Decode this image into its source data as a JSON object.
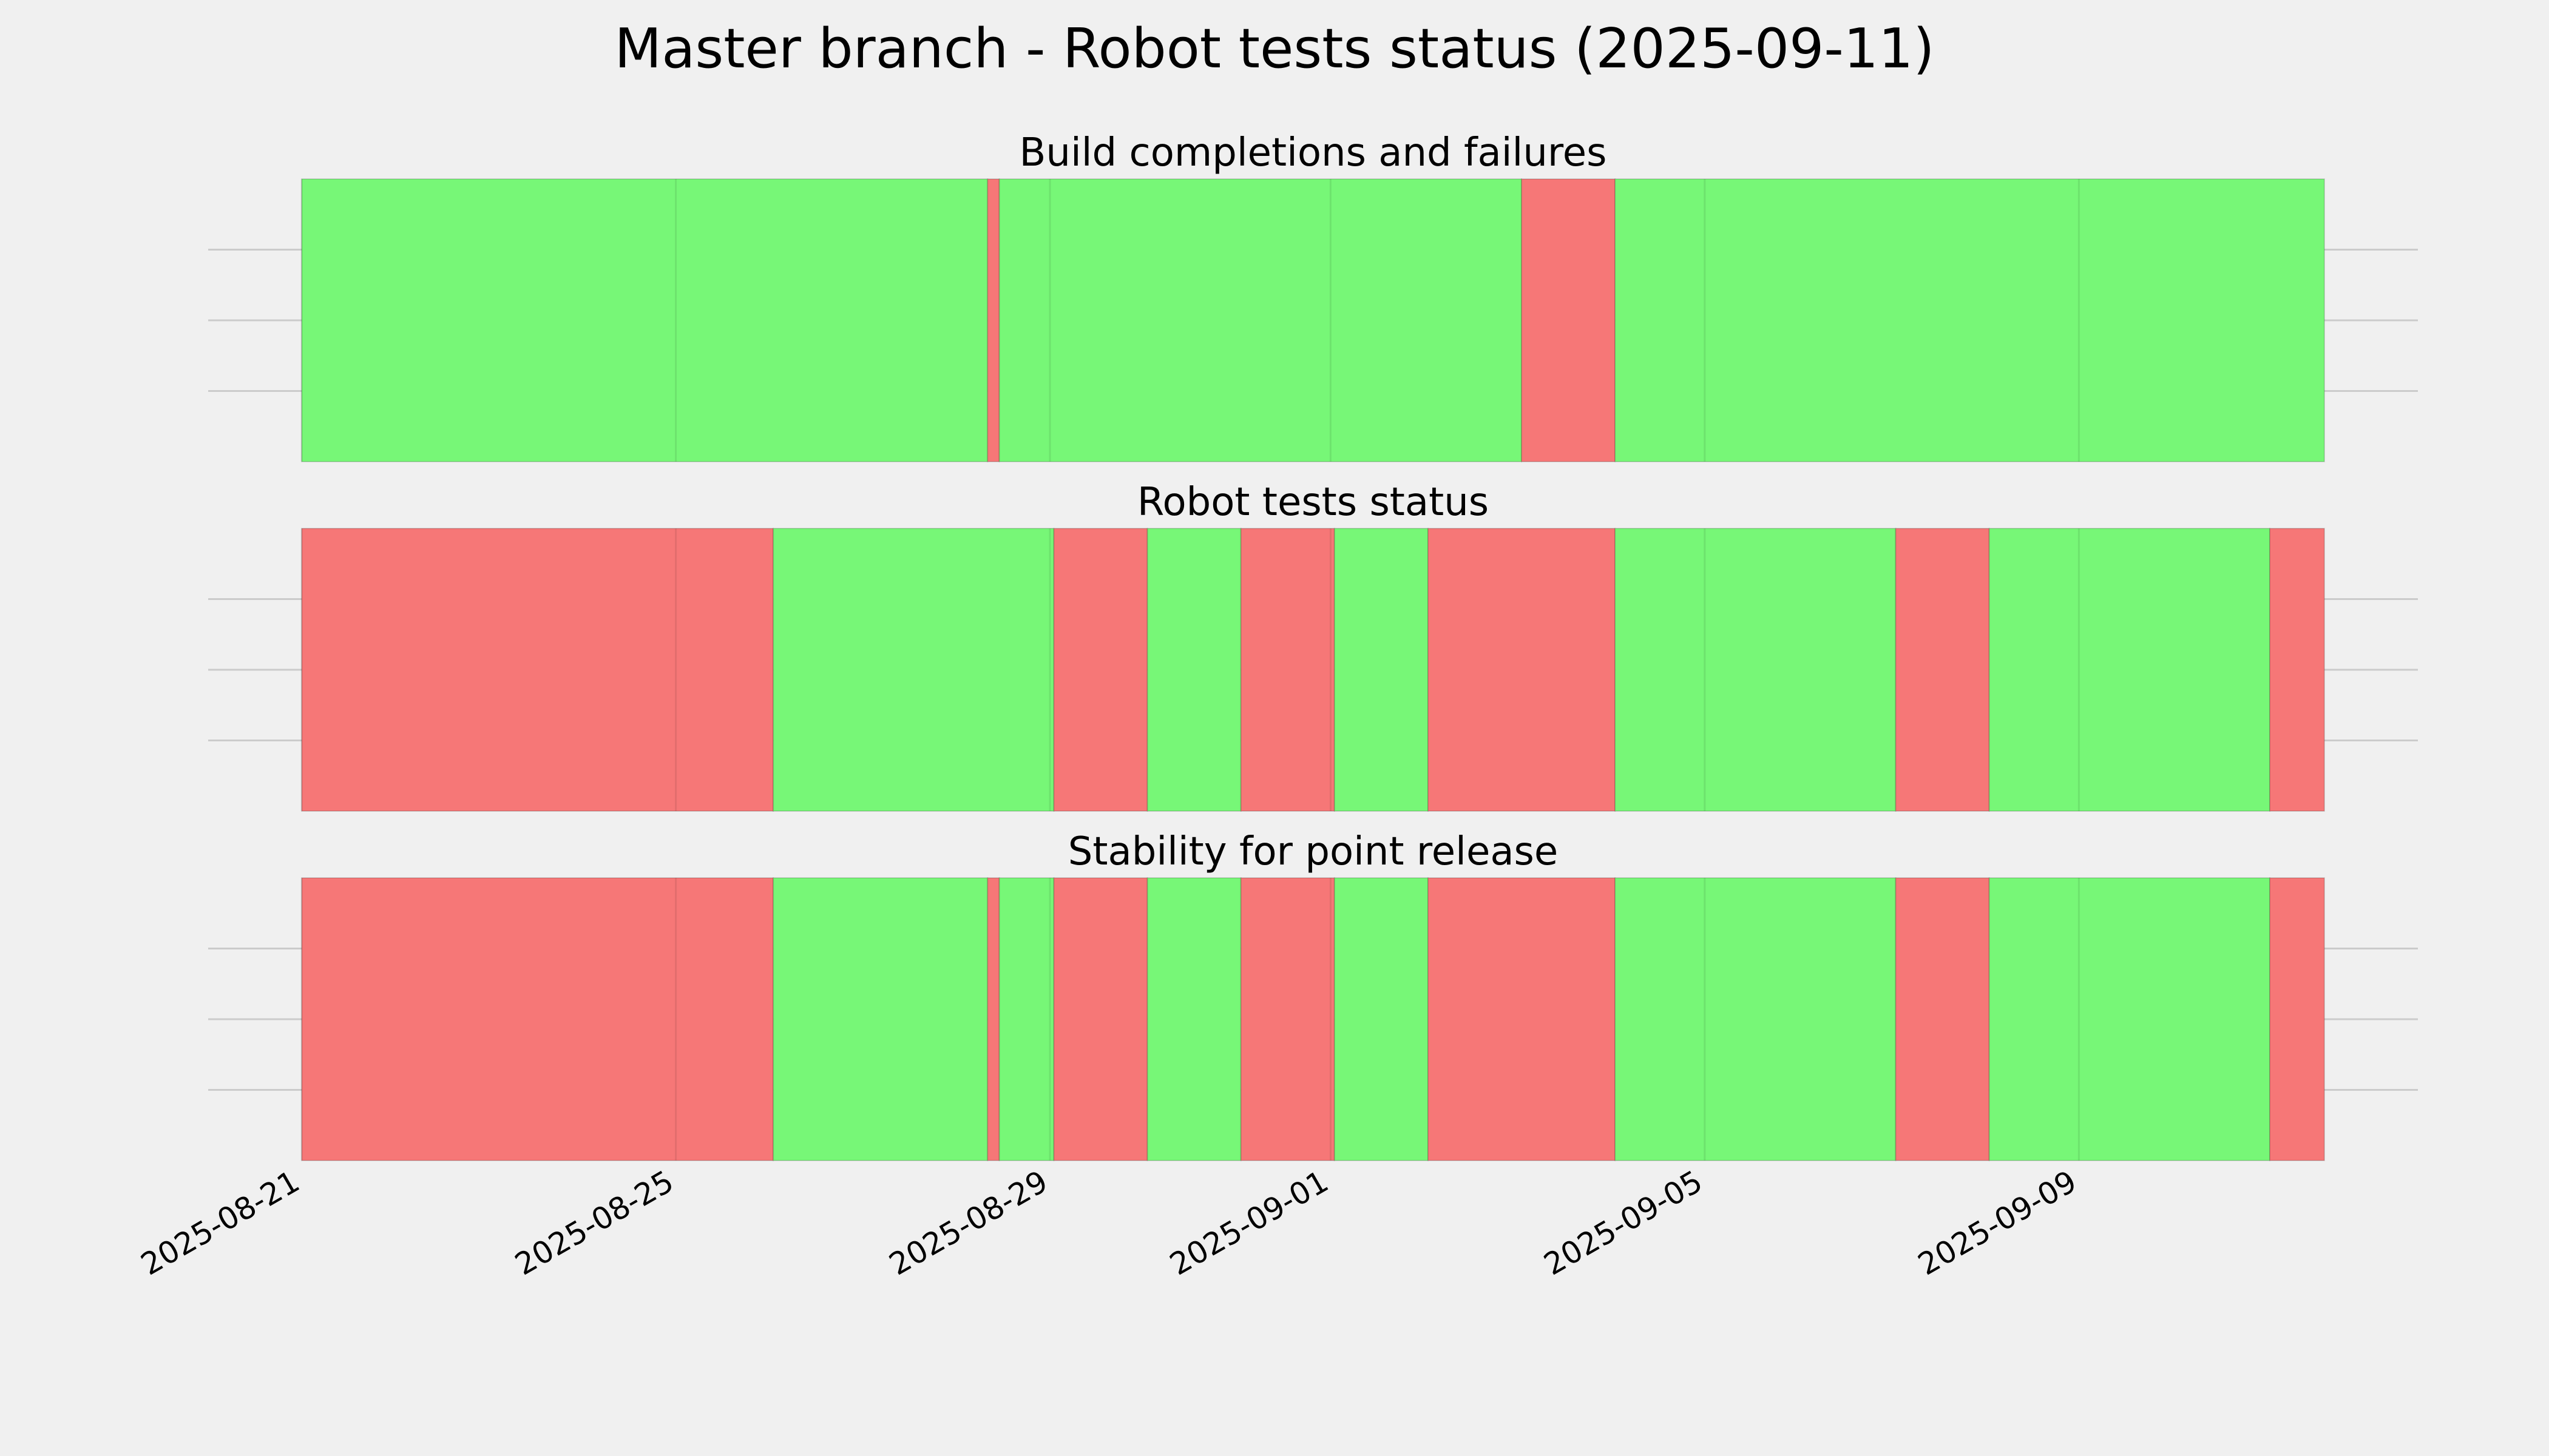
{
  "title": "Master branch - Robot tests status (2025-09-11)",
  "chart_data": [
    {
      "type": "timeline",
      "title": "Build completions and failures",
      "xlim": [
        "2025-08-20T00:00",
        "2025-09-12T15:00"
      ],
      "xticks": [
        "2025-08-21",
        "2025-08-25",
        "2025-08-29",
        "2025-09-01",
        "2025-09-05",
        "2025-09-09"
      ],
      "ylim": [
        0,
        1
      ],
      "yticks": [
        0.25,
        0.5,
        0.75
      ],
      "grid": true,
      "segments": [
        {
          "start": "2025-08-21T00:00",
          "end": "2025-08-28T08:00",
          "color": "#77f777"
        },
        {
          "start": "2025-08-28T08:00",
          "end": "2025-08-28T11:00",
          "color": "#f67777"
        },
        {
          "start": "2025-08-28T11:00",
          "end": "2025-09-03T01:00",
          "color": "#77f777"
        },
        {
          "start": "2025-09-03T01:00",
          "end": "2025-09-04T01:00",
          "color": "#f67777"
        },
        {
          "start": "2025-09-04T01:00",
          "end": "2025-09-11T15:00",
          "color": "#77f777"
        }
      ]
    },
    {
      "type": "timeline",
      "title": "Robot tests status",
      "xlim": [
        "2025-08-20T00:00",
        "2025-09-12T15:00"
      ],
      "xticks": [
        "2025-08-21",
        "2025-08-25",
        "2025-08-29",
        "2025-09-01",
        "2025-09-05",
        "2025-09-09"
      ],
      "ylim": [
        0,
        1
      ],
      "yticks": [
        0.25,
        0.5,
        0.75
      ],
      "grid": true,
      "segments": [
        {
          "start": "2025-08-21T00:00",
          "end": "2025-08-26T01:00",
          "color": "#f67777"
        },
        {
          "start": "2025-08-26T01:00",
          "end": "2025-08-29T01:00",
          "color": "#77f777"
        },
        {
          "start": "2025-08-29T01:00",
          "end": "2025-08-30T01:00",
          "color": "#f67777"
        },
        {
          "start": "2025-08-30T01:00",
          "end": "2025-08-31T01:00",
          "color": "#77f777"
        },
        {
          "start": "2025-08-31T01:00",
          "end": "2025-09-01T01:00",
          "color": "#f67777"
        },
        {
          "start": "2025-09-01T01:00",
          "end": "2025-09-02T01:00",
          "color": "#77f777"
        },
        {
          "start": "2025-09-02T01:00",
          "end": "2025-09-04T01:00",
          "color": "#f67777"
        },
        {
          "start": "2025-09-04T01:00",
          "end": "2025-09-07T01:00",
          "color": "#77f777"
        },
        {
          "start": "2025-09-07T01:00",
          "end": "2025-09-08T01:00",
          "color": "#f67777"
        },
        {
          "start": "2025-09-08T01:00",
          "end": "2025-09-11T01:00",
          "color": "#77f777"
        },
        {
          "start": "2025-09-11T01:00",
          "end": "2025-09-11T15:00",
          "color": "#f67777"
        }
      ]
    },
    {
      "type": "timeline",
      "title": "Stability for point release",
      "xlim": [
        "2025-08-20T00:00",
        "2025-09-12T15:00"
      ],
      "xticks": [
        "2025-08-21",
        "2025-08-25",
        "2025-08-29",
        "2025-09-01",
        "2025-09-05",
        "2025-09-09"
      ],
      "ylim": [
        0,
        1
      ],
      "yticks": [
        0.25,
        0.5,
        0.75
      ],
      "grid": true,
      "segments": [
        {
          "start": "2025-08-21T00:00",
          "end": "2025-08-26T01:00",
          "color": "#f67777"
        },
        {
          "start": "2025-08-26T01:00",
          "end": "2025-08-28T08:00",
          "color": "#77f777"
        },
        {
          "start": "2025-08-28T08:00",
          "end": "2025-08-28T11:00",
          "color": "#f67777"
        },
        {
          "start": "2025-08-28T11:00",
          "end": "2025-08-29T01:00",
          "color": "#77f777"
        },
        {
          "start": "2025-08-29T01:00",
          "end": "2025-08-30T01:00",
          "color": "#f67777"
        },
        {
          "start": "2025-08-30T01:00",
          "end": "2025-08-31T01:00",
          "color": "#77f777"
        },
        {
          "start": "2025-08-31T01:00",
          "end": "2025-09-01T01:00",
          "color": "#f67777"
        },
        {
          "start": "2025-09-01T01:00",
          "end": "2025-09-02T01:00",
          "color": "#77f777"
        },
        {
          "start": "2025-09-02T01:00",
          "end": "2025-09-04T01:00",
          "color": "#f67777"
        },
        {
          "start": "2025-09-04T01:00",
          "end": "2025-09-07T01:00",
          "color": "#77f777"
        },
        {
          "start": "2025-09-07T01:00",
          "end": "2025-09-08T01:00",
          "color": "#f67777"
        },
        {
          "start": "2025-09-08T01:00",
          "end": "2025-09-11T01:00",
          "color": "#77f777"
        },
        {
          "start": "2025-09-11T01:00",
          "end": "2025-09-11T15:00",
          "color": "#f67777"
        }
      ]
    }
  ]
}
